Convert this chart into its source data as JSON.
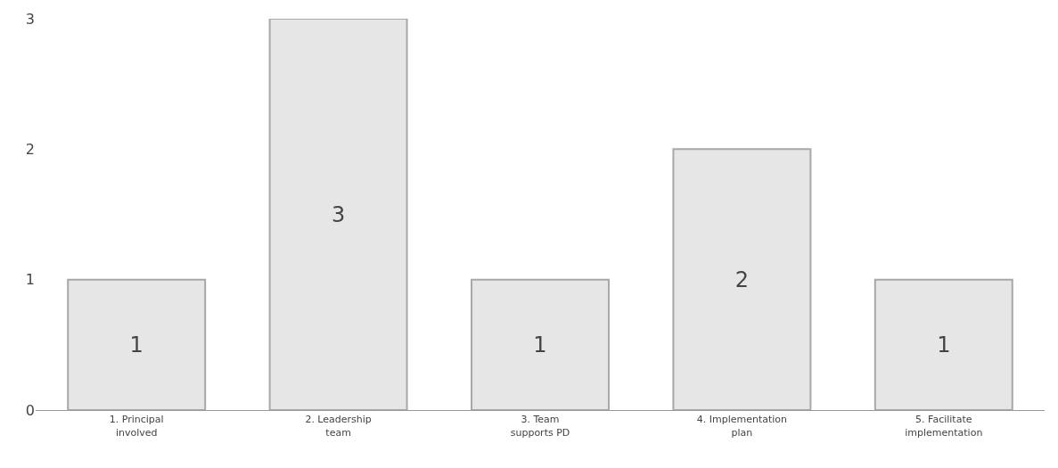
{
  "chart_data": {
    "type": "bar",
    "categories": [
      "1. Principal\ninvolved",
      "2. Leadership\nteam",
      "3. Team\nsupports PD",
      "4. Implementation\nplan",
      "5. Facilitate\nimplementation"
    ],
    "values": [
      1,
      3,
      1,
      2,
      1
    ],
    "color": "#e6e6e6",
    "ylim": [
      0,
      3
    ],
    "yticks": [
      0,
      1,
      2,
      3
    ],
    "data_labels": true,
    "legend": false
  }
}
